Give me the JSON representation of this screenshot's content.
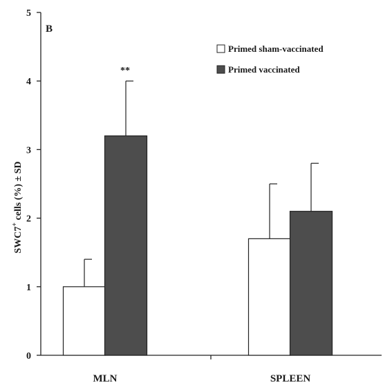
{
  "panel_label": "B",
  "chart_data": {
    "type": "bar",
    "categories": [
      "MLN",
      "SPLEEN"
    ],
    "ylabel": "SWC7+ cells (%) ± SD",
    "ylabel_parts": {
      "pre": "SWC7",
      "sup": "+",
      "post": " cells (%) ± SD"
    },
    "ylim": [
      0,
      5
    ],
    "yticks": [
      "0",
      "1",
      "2",
      "3",
      "4",
      "5"
    ],
    "legend_position": "top-right",
    "grid": false,
    "series": [
      {
        "name": "Primed sham-vaccinated",
        "color": "#ffffff",
        "values": [
          1.0,
          1.7
        ],
        "sd": [
          0.4,
          0.8
        ]
      },
      {
        "name": "Primed vaccinated",
        "color": "#4d4d4d",
        "values": [
          3.2,
          2.1
        ],
        "sd": [
          0.8,
          0.7
        ]
      }
    ],
    "annotations": [
      {
        "category": "MLN",
        "series": 1,
        "text": "**"
      }
    ]
  }
}
